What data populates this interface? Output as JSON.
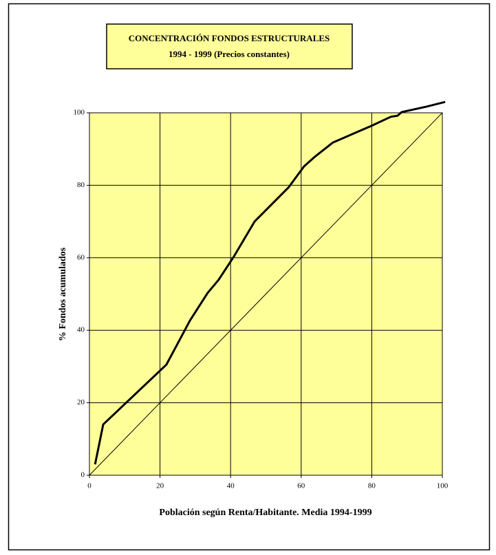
{
  "chart_data": {
    "type": "line",
    "title": [
      "CONCENTRACIÓN  FONDOS ESTRUCTURALES",
      "1994 - 1999 (Precios constantes)"
    ],
    "x_label": "Población según Renta/Habitante. Media 1994-1999",
    "y_label": "% Fondos acumulados",
    "xlim": [
      0,
      100
    ],
    "ylim": [
      0,
      100
    ],
    "xticks": [
      0,
      20,
      40,
      60,
      80,
      100
    ],
    "yticks": [
      0,
      20,
      40,
      60,
      80,
      100
    ],
    "grid": true,
    "background": "#ffff99",
    "series": [
      {
        "color": "#000000",
        "x": [
          1.6,
          3.9,
          21.8,
          28.5,
          33.5,
          36.6,
          40.9,
          46.8,
          56.5,
          60.8,
          63.9,
          69.0,
          79.9,
          85.4,
          87.3,
          88.5,
          95.5,
          100.8
        ],
        "values": [
          3.0,
          14.0,
          30.5,
          42.7,
          50.3,
          53.9,
          60.3,
          70.0,
          79.5,
          85.2,
          87.9,
          91.8,
          96.4,
          98.9,
          99.2,
          100.2,
          101.7,
          103.0
        ]
      },
      {
        "color": "#000000",
        "x": [
          0,
          100
        ],
        "values": [
          0,
          100
        ]
      }
    ]
  }
}
